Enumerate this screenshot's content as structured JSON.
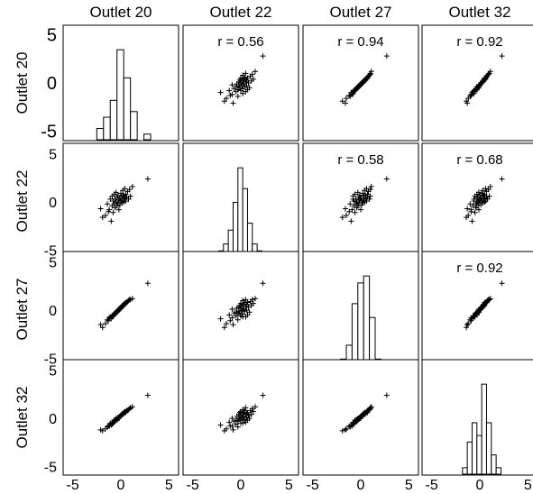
{
  "chart_data": {
    "type": "scatter",
    "variables": [
      "Outlet 20",
      "Outlet 22",
      "Outlet 27",
      "Outlet 32"
    ],
    "axis_range": [
      -6,
      6
    ],
    "ticks": [
      -5,
      0,
      5
    ],
    "grid": false,
    "correlations": [
      {
        "row": 0,
        "col": 1,
        "label": "r = 0.56"
      },
      {
        "row": 0,
        "col": 2,
        "label": "r = 0.94"
      },
      {
        "row": 0,
        "col": 3,
        "label": "r = 0.92"
      },
      {
        "row": 1,
        "col": 2,
        "label": "r = 0.58"
      },
      {
        "row": 1,
        "col": 3,
        "label": "r = 0.68"
      },
      {
        "row": 2,
        "col": 3,
        "label": "r = 0.92"
      }
    ],
    "histograms": [
      {
        "variable": "Outlet 20",
        "bin_edges": [
          -2.5,
          -1.8,
          -1.1,
          -0.4,
          0.3,
          1.0,
          1.7,
          2.4,
          3.1
        ],
        "counts": [
          2,
          4,
          7,
          16,
          11,
          5,
          0,
          1
        ]
      },
      {
        "variable": "Outlet 22",
        "bin_edges": [
          -2.3,
          -1.8,
          -1.3,
          -0.8,
          -0.3,
          0.2,
          0.7,
          1.2,
          1.7,
          2.2
        ],
        "counts": [
          1,
          2,
          4,
          8,
          13,
          10,
          5,
          2,
          1
        ]
      },
      {
        "variable": "Outlet 27",
        "bin_edges": [
          -2.1,
          -1.5,
          -0.9,
          -0.3,
          0.3,
          0.9,
          1.5,
          2.1
        ],
        "counts": [
          1,
          3,
          9,
          12,
          13,
          7,
          1
        ]
      },
      {
        "variable": "Outlet 32",
        "bin_edges": [
          -1.8,
          -1.3,
          -0.8,
          -0.3,
          0.2,
          0.7,
          1.2,
          1.7,
          2.2
        ],
        "counts": [
          1,
          5,
          8,
          6,
          14,
          8,
          3,
          1
        ]
      }
    ],
    "points": {
      "x_variable": "Outlet 20",
      "y_variable": "Outlet 22",
      "z_variable": "Outlet 27",
      "w_variable": "Outlet 32",
      "observations": [
        {
          "o20": -2.1,
          "o22": -0.8,
          "o27": -1.6,
          "o32": -1.3
        },
        {
          "o20": -1.9,
          "o22": -1.7,
          "o27": -1.9,
          "o32": -1.4
        },
        {
          "o20": -1.6,
          "o22": -1.5,
          "o27": -1.5,
          "o32": -1.2
        },
        {
          "o20": -1.4,
          "o22": -0.3,
          "o27": -1.1,
          "o32": -1.0
        },
        {
          "o20": -1.3,
          "o22": -1.1,
          "o27": -1.2,
          "o32": -0.9
        },
        {
          "o20": -1.2,
          "o22": -0.9,
          "o27": -0.9,
          "o32": -0.9
        },
        {
          "o20": -1.1,
          "o22": 0.2,
          "o27": -0.8,
          "o32": -0.6
        },
        {
          "o20": -1.0,
          "o22": -2.1,
          "o27": -1.0,
          "o32": -0.8
        },
        {
          "o20": -0.9,
          "o22": -0.5,
          "o27": -0.7,
          "o32": -0.7
        },
        {
          "o20": -0.9,
          "o22": 0.5,
          "o27": -0.8,
          "o32": -0.5
        },
        {
          "o20": -0.8,
          "o22": -1.2,
          "o27": -0.6,
          "o32": -0.5
        },
        {
          "o20": -0.8,
          "o22": 0.0,
          "o27": -0.7,
          "o32": -0.6
        },
        {
          "o20": -0.7,
          "o22": -0.3,
          "o27": -0.5,
          "o32": -0.4
        },
        {
          "o20": -0.7,
          "o22": 0.7,
          "o27": -0.6,
          "o32": -0.3
        },
        {
          "o20": -0.6,
          "o22": -0.7,
          "o27": -0.4,
          "o32": -0.4
        },
        {
          "o20": -0.6,
          "o22": 0.2,
          "o27": -0.5,
          "o32": -0.3
        },
        {
          "o20": -0.5,
          "o22": -0.1,
          "o27": -0.4,
          "o32": -0.2
        },
        {
          "o20": -0.5,
          "o22": 0.9,
          "o27": -0.3,
          "o32": -0.1
        },
        {
          "o20": -0.4,
          "o22": -0.5,
          "o27": -0.3,
          "o32": -0.3
        },
        {
          "o20": -0.4,
          "o22": 0.4,
          "o27": -0.2,
          "o32": -0.2
        },
        {
          "o20": -0.3,
          "o22": -0.2,
          "o27": -0.2,
          "o32": -0.1
        },
        {
          "o20": -0.3,
          "o22": 0.6,
          "o27": -0.1,
          "o32": 0.0
        },
        {
          "o20": -0.2,
          "o22": 0.1,
          "o27": -0.1,
          "o32": 0.0
        },
        {
          "o20": -0.2,
          "o22": -0.9,
          "o27": 0.0,
          "o32": -0.1
        },
        {
          "o20": -0.1,
          "o22": 0.3,
          "o27": 0.0,
          "o32": 0.1
        },
        {
          "o20": -0.1,
          "o22": -0.4,
          "o27": 0.1,
          "o32": 0.1
        },
        {
          "o20": 0.0,
          "o22": 0.0,
          "o27": 0.1,
          "o32": 0.2
        },
        {
          "o20": 0.0,
          "o22": 0.8,
          "o27": 0.2,
          "o32": 0.2
        },
        {
          "o20": 0.1,
          "o22": -0.2,
          "o27": 0.2,
          "o32": 0.3
        },
        {
          "o20": 0.1,
          "o22": 0.5,
          "o27": 0.3,
          "o32": 0.3
        },
        {
          "o20": 0.2,
          "o22": 0.2,
          "o27": 0.3,
          "o32": 0.4
        },
        {
          "o20": 0.2,
          "o22": 1.1,
          "o27": 0.4,
          "o32": 0.3
        },
        {
          "o20": 0.3,
          "o22": -0.1,
          "o27": 0.4,
          "o32": 0.5
        },
        {
          "o20": 0.3,
          "o22": 0.6,
          "o27": 0.5,
          "o32": 0.4
        },
        {
          "o20": 0.4,
          "o22": 0.3,
          "o27": 0.5,
          "o32": 0.5
        },
        {
          "o20": 0.4,
          "o22": 1.3,
          "o27": 0.6,
          "o32": 0.6
        },
        {
          "o20": 0.5,
          "o22": 0.0,
          "o27": 0.6,
          "o32": 0.6
        },
        {
          "o20": 0.5,
          "o22": 0.7,
          "o27": 0.7,
          "o32": 0.5
        },
        {
          "o20": 0.6,
          "o22": 0.4,
          "o27": 0.7,
          "o32": 0.7
        },
        {
          "o20": 0.7,
          "o22": 1.0,
          "o27": 0.8,
          "o32": 0.7
        },
        {
          "o20": 0.8,
          "o22": 0.2,
          "o27": 0.9,
          "o32": 0.8
        },
        {
          "o20": 0.9,
          "o22": 1.2,
          "o27": 1.0,
          "o32": 0.9
        },
        {
          "o20": 1.0,
          "o22": 0.5,
          "o27": 1.0,
          "o32": 1.0
        },
        {
          "o20": 1.2,
          "o22": 1.5,
          "o27": 1.1,
          "o32": 1.1
        },
        {
          "o20": 2.8,
          "o22": 2.3,
          "o27": 2.7,
          "o32": 2.3
        }
      ]
    }
  }
}
